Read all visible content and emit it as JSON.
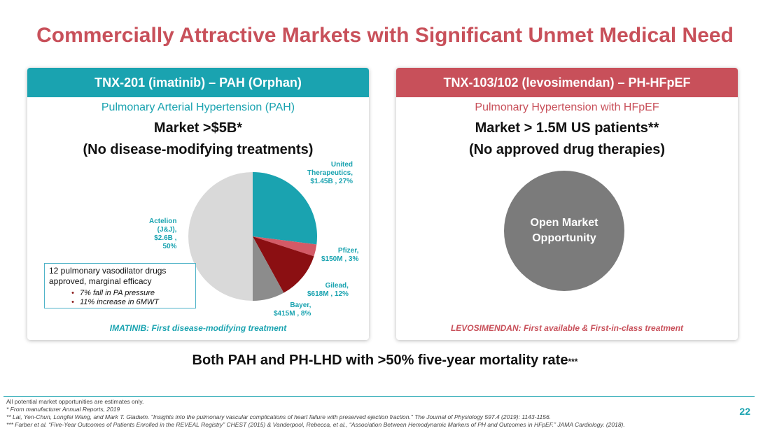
{
  "title": "Commercially Attractive Markets with Significant Unmet Medical Need",
  "left_panel": {
    "header": "TNX-201 (imatinib) – PAH  (Orphan)",
    "subtitle": "Pulmonary Arterial Hypertension (PAH)",
    "market": "Market >$5B*",
    "note": "(No disease-modifying treatments)",
    "footer": "IMATINIB: First disease-modifying treatment",
    "callout": {
      "lead": "12 pulmonary vasodilator drugs approved, marginal efficacy",
      "bullets": [
        "7% fall in PA pressure",
        "11% increase in 6MWT"
      ]
    }
  },
  "right_panel": {
    "header": "TNX-103/102 (levosimendan) – PH-HFpEF",
    "subtitle": "Pulmonary Hypertension with HFpEF",
    "market": "Market > 1.5M US patients**",
    "note": "(No approved drug therapies)",
    "circle_label": "Open Market Opportunity",
    "footer": "LEVOSIMENDAN: First available & First-in-class treatment"
  },
  "chart_data": {
    "type": "pie",
    "slices": [
      {
        "label_lines": [
          "United",
          "Therapeutics,",
          "$1.45B , 27%"
        ],
        "value": 27,
        "color": "#1aa3b0"
      },
      {
        "label_lines": [
          "Pfizer,",
          "$150M , 3%"
        ],
        "value": 3,
        "color": "#d35a66"
      },
      {
        "label_lines": [
          "Gilead,",
          "$618M , 12%"
        ],
        "value": 12,
        "color": "#8b0f12"
      },
      {
        "label_lines": [
          "Bayer,",
          "$415M , 8%"
        ],
        "value": 8,
        "color": "#8c8c8c"
      },
      {
        "label_lines": [
          "Actelion",
          "(J&J),",
          "$2.6B ,",
          "50%"
        ],
        "value": 50,
        "color": "#d9d9d9"
      }
    ]
  },
  "mortality": {
    "text": "Both PAH and PH-LHD with >50% five-year mortality rate",
    "stars": "***"
  },
  "footnotes": {
    "line1": "All potential market opportunities are estimates only.",
    "line2": "*  From manufacturer Annual Reports, 2019",
    "line3": "** Lai, Yen-Chun, Longfei Wang, and Mark T. Gladwin. \"Insights into the pulmonary vascular complications of heart failure with preserved ejection fraction.\" The Journal of Physiology 597.4 (2019): 1143-1156.",
    "line4": "***  Farber et al. “Five-Year Outcomes of Patients Enrolled in the REVEAL Registry” CHEST (2015) & Vanderpool, Rebecca, et al., “Association Between Hemodynamic Markers of PH and Outcomes in HFpEF.” JAMA Cardiology. (2018)."
  },
  "page_number": "22"
}
